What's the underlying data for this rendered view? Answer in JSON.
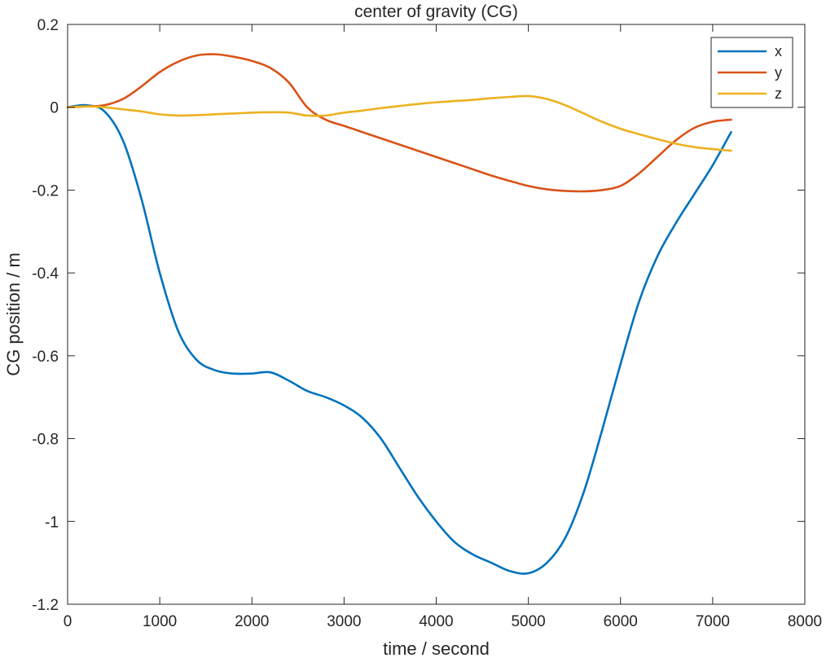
{
  "chart_data": {
    "type": "line",
    "title": "center of gravity (CG)",
    "xlabel": "time / second",
    "ylabel": "CG position / m",
    "xlim": [
      0,
      8000
    ],
    "ylim": [
      -1.2,
      0.2
    ],
    "xticks": [
      0,
      1000,
      2000,
      3000,
      4000,
      5000,
      6000,
      7000,
      8000
    ],
    "xtick_labels": [
      "0",
      "1000",
      "2000",
      "3000",
      "4000",
      "5000",
      "6000",
      "7000",
      "8000"
    ],
    "yticks": [
      0.2,
      0,
      -0.2,
      -0.4,
      -0.6,
      -0.8,
      -1,
      -1.2
    ],
    "ytick_labels": [
      "0.2",
      "0",
      "-0.2",
      "-0.4",
      "-0.6",
      "-0.8",
      "-1",
      "-1.2"
    ],
    "grid": false,
    "legend_position": "top-right",
    "series": [
      {
        "name": "x",
        "color": "#0072BD",
        "points": [
          [
            0,
            0
          ],
          [
            200,
            0.005
          ],
          [
            400,
            -0.01
          ],
          [
            600,
            -0.08
          ],
          [
            800,
            -0.22
          ],
          [
            1000,
            -0.4
          ],
          [
            1200,
            -0.54
          ],
          [
            1400,
            -0.61
          ],
          [
            1600,
            -0.635
          ],
          [
            1800,
            -0.643
          ],
          [
            2000,
            -0.643
          ],
          [
            2200,
            -0.64
          ],
          [
            2400,
            -0.66
          ],
          [
            2600,
            -0.685
          ],
          [
            2800,
            -0.7
          ],
          [
            3000,
            -0.72
          ],
          [
            3200,
            -0.75
          ],
          [
            3400,
            -0.8
          ],
          [
            3600,
            -0.87
          ],
          [
            3800,
            -0.94
          ],
          [
            4000,
            -1.0
          ],
          [
            4200,
            -1.05
          ],
          [
            4400,
            -1.08
          ],
          [
            4600,
            -1.1
          ],
          [
            4800,
            -1.12
          ],
          [
            5000,
            -1.125
          ],
          [
            5200,
            -1.1
          ],
          [
            5400,
            -1.04
          ],
          [
            5600,
            -0.93
          ],
          [
            5800,
            -0.78
          ],
          [
            6000,
            -0.62
          ],
          [
            6200,
            -0.47
          ],
          [
            6400,
            -0.36
          ],
          [
            6600,
            -0.28
          ],
          [
            6800,
            -0.21
          ],
          [
            7000,
            -0.14
          ],
          [
            7200,
            -0.06
          ]
        ]
      },
      {
        "name": "y",
        "color": "#D95319",
        "points": [
          [
            0,
            0
          ],
          [
            200,
            0.002
          ],
          [
            400,
            0.005
          ],
          [
            600,
            0.02
          ],
          [
            800,
            0.05
          ],
          [
            1000,
            0.085
          ],
          [
            1200,
            0.11
          ],
          [
            1400,
            0.125
          ],
          [
            1600,
            0.128
          ],
          [
            1800,
            0.122
          ],
          [
            2000,
            0.112
          ],
          [
            2200,
            0.095
          ],
          [
            2400,
            0.06
          ],
          [
            2600,
            0.0
          ],
          [
            2800,
            -0.03
          ],
          [
            3000,
            -0.045
          ],
          [
            3200,
            -0.06
          ],
          [
            3400,
            -0.075
          ],
          [
            3600,
            -0.09
          ],
          [
            3800,
            -0.105
          ],
          [
            4000,
            -0.12
          ],
          [
            4200,
            -0.135
          ],
          [
            4400,
            -0.15
          ],
          [
            4600,
            -0.165
          ],
          [
            4800,
            -0.178
          ],
          [
            5000,
            -0.19
          ],
          [
            5200,
            -0.198
          ],
          [
            5400,
            -0.202
          ],
          [
            5600,
            -0.203
          ],
          [
            5800,
            -0.2
          ],
          [
            6000,
            -0.19
          ],
          [
            6200,
            -0.16
          ],
          [
            6400,
            -0.12
          ],
          [
            6600,
            -0.08
          ],
          [
            6800,
            -0.05
          ],
          [
            7000,
            -0.035
          ],
          [
            7200,
            -0.03
          ]
        ]
      },
      {
        "name": "z",
        "color": "#EDB120",
        "points": [
          [
            0,
            0
          ],
          [
            200,
            0.002
          ],
          [
            400,
            0.0
          ],
          [
            600,
            -0.005
          ],
          [
            800,
            -0.01
          ],
          [
            1000,
            -0.017
          ],
          [
            1200,
            -0.02
          ],
          [
            1400,
            -0.019
          ],
          [
            1600,
            -0.017
          ],
          [
            1800,
            -0.015
          ],
          [
            2000,
            -0.013
          ],
          [
            2200,
            -0.012
          ],
          [
            2400,
            -0.013
          ],
          [
            2600,
            -0.02
          ],
          [
            2800,
            -0.02
          ],
          [
            3000,
            -0.013
          ],
          [
            3200,
            -0.008
          ],
          [
            3400,
            -0.002
          ],
          [
            3600,
            0.003
          ],
          [
            3800,
            0.008
          ],
          [
            4000,
            0.012
          ],
          [
            4200,
            0.015
          ],
          [
            4400,
            0.018
          ],
          [
            4600,
            0.022
          ],
          [
            4800,
            0.025
          ],
          [
            5000,
            0.027
          ],
          [
            5200,
            0.02
          ],
          [
            5400,
            0.005
          ],
          [
            5600,
            -0.015
          ],
          [
            5800,
            -0.035
          ],
          [
            6000,
            -0.052
          ],
          [
            6200,
            -0.065
          ],
          [
            6400,
            -0.077
          ],
          [
            6600,
            -0.088
          ],
          [
            6800,
            -0.096
          ],
          [
            7000,
            -0.101
          ],
          [
            7200,
            -0.105
          ]
        ]
      }
    ]
  }
}
